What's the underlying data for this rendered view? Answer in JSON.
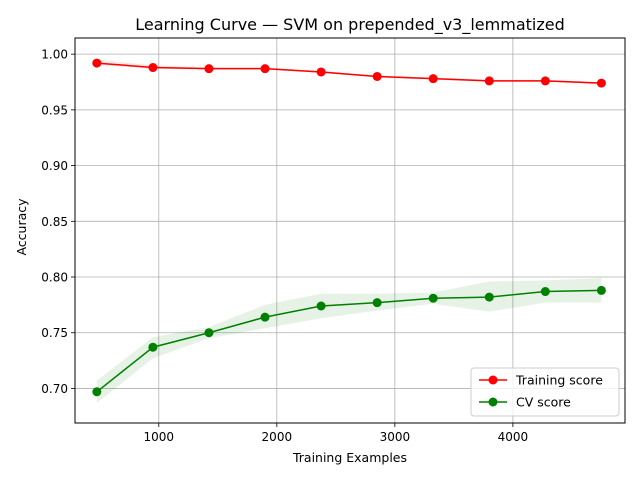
{
  "chart_data": {
    "type": "line",
    "title": "Learning Curve — SVM on prepended_v3_lemmatized",
    "xlabel": "Training Examples",
    "ylabel": "Accuracy",
    "xlim": [
      290,
      4950
    ],
    "ylim": [
      0.669,
      1.0145
    ],
    "x_ticks": [
      1000,
      2000,
      3000,
      4000
    ],
    "y_ticks": [
      0.7,
      0.75,
      0.8,
      0.85,
      0.9,
      0.95,
      1.0
    ],
    "grid": true,
    "legend_position": "lower-right",
    "x": [
      475,
      950,
      1425,
      1900,
      2375,
      2850,
      3325,
      3800,
      4275,
      4750
    ],
    "series": [
      {
        "name": "Training score",
        "color": "#ff0000",
        "values": [
          0.992,
          0.988,
          0.987,
          0.987,
          0.984,
          0.98,
          0.978,
          0.976,
          0.976,
          0.974
        ],
        "band_lower": [
          0.99,
          0.987,
          0.986,
          0.986,
          0.983,
          0.979,
          0.977,
          0.975,
          0.975,
          0.973
        ],
        "band_upper": [
          0.995,
          0.99,
          0.988,
          0.988,
          0.985,
          0.981,
          0.979,
          0.977,
          0.977,
          0.975
        ]
      },
      {
        "name": "CV score",
        "color": "#008000",
        "values": [
          0.697,
          0.737,
          0.75,
          0.764,
          0.774,
          0.777,
          0.781,
          0.782,
          0.787,
          0.788
        ],
        "band_lower": [
          0.687,
          0.727,
          0.745,
          0.754,
          0.763,
          0.77,
          0.776,
          0.769,
          0.777,
          0.777
        ],
        "band_upper": [
          0.707,
          0.746,
          0.755,
          0.775,
          0.785,
          0.785,
          0.786,
          0.796,
          0.797,
          0.799
        ]
      }
    ]
  }
}
